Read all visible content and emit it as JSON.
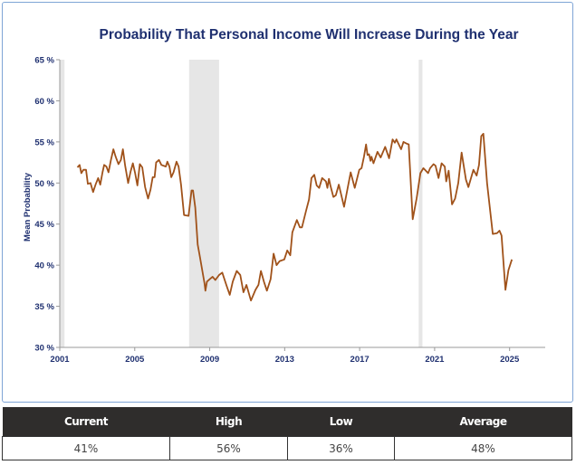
{
  "chart_data": {
    "type": "line",
    "title": "Probability That Personal Income Will Increase During the Year",
    "xlabel": "",
    "ylabel": "Mean Probability",
    "xlim": [
      2001,
      2026.9
    ],
    "ylim": [
      30,
      65
    ],
    "x_ticks": [
      "2001",
      "2005",
      "2009",
      "2013",
      "2017",
      "2021",
      "2025"
    ],
    "y_ticks": [
      "30 %",
      "35 %",
      "40 %",
      "45 %",
      "50 %",
      "55 %",
      "60 %",
      "65 %"
    ],
    "grid": false,
    "line_color": "#a0521a",
    "shaded_periods": [
      [
        2001.0,
        2001.25
      ],
      [
        2007.9,
        2009.5
      ],
      [
        2020.15,
        2020.35
      ]
    ],
    "shade_color": "#e6e6e6",
    "series": [
      {
        "points": [
          [
            2001.94,
            51.9
          ],
          [
            2002.06,
            52.2
          ],
          [
            2002.15,
            51.2
          ],
          [
            2002.26,
            51.6
          ],
          [
            2002.4,
            51.6
          ],
          [
            2002.5,
            49.9
          ],
          [
            2002.64,
            50.0
          ],
          [
            2002.78,
            48.9
          ],
          [
            2002.91,
            49.8
          ],
          [
            2003.05,
            50.6
          ],
          [
            2003.16,
            49.8
          ],
          [
            2003.28,
            51.3
          ],
          [
            2003.37,
            52.2
          ],
          [
            2003.49,
            52.0
          ],
          [
            2003.6,
            51.3
          ],
          [
            2003.73,
            52.8
          ],
          [
            2003.86,
            54.1
          ],
          [
            2003.98,
            53.2
          ],
          [
            2004.13,
            52.3
          ],
          [
            2004.26,
            52.8
          ],
          [
            2004.37,
            54.1
          ],
          [
            2004.49,
            52.1
          ],
          [
            2004.65,
            50.0
          ],
          [
            2004.78,
            51.4
          ],
          [
            2004.9,
            52.4
          ],
          [
            2005.02,
            51.2
          ],
          [
            2005.14,
            49.7
          ],
          [
            2005.27,
            52.3
          ],
          [
            2005.4,
            51.9
          ],
          [
            2005.55,
            49.5
          ],
          [
            2005.71,
            48.1
          ],
          [
            2005.84,
            49.2
          ],
          [
            2005.96,
            50.7
          ],
          [
            2006.06,
            50.7
          ],
          [
            2006.14,
            52.5
          ],
          [
            2006.29,
            52.8
          ],
          [
            2006.42,
            52.2
          ],
          [
            2006.66,
            52.0
          ],
          [
            2006.74,
            52.6
          ],
          [
            2006.85,
            52.0
          ],
          [
            2006.95,
            50.7
          ],
          [
            2007.07,
            51.3
          ],
          [
            2007.23,
            52.6
          ],
          [
            2007.34,
            52.0
          ],
          [
            2007.47,
            49.8
          ],
          [
            2007.63,
            46.1
          ],
          [
            2007.87,
            46.0
          ],
          [
            2008.03,
            49.1
          ],
          [
            2008.11,
            49.1
          ],
          [
            2008.23,
            47.0
          ],
          [
            2008.36,
            42.5
          ],
          [
            2008.47,
            41.1
          ],
          [
            2008.72,
            37.8
          ],
          [
            2008.77,
            36.9
          ],
          [
            2008.85,
            38.0
          ],
          [
            2009.0,
            38.3
          ],
          [
            2009.15,
            38.6
          ],
          [
            2009.3,
            38.2
          ],
          [
            2009.5,
            38.8
          ],
          [
            2009.67,
            39.1
          ],
          [
            2009.9,
            37.5
          ],
          [
            2010.07,
            36.4
          ],
          [
            2010.23,
            38.0
          ],
          [
            2010.44,
            39.3
          ],
          [
            2010.63,
            38.8
          ],
          [
            2010.8,
            36.7
          ],
          [
            2010.96,
            37.6
          ],
          [
            2011.2,
            35.7
          ],
          [
            2011.44,
            37.0
          ],
          [
            2011.6,
            37.6
          ],
          [
            2011.73,
            39.3
          ],
          [
            2011.89,
            38.0
          ],
          [
            2012.05,
            36.9
          ],
          [
            2012.25,
            38.3
          ],
          [
            2012.41,
            41.4
          ],
          [
            2012.57,
            40.0
          ],
          [
            2012.73,
            40.5
          ],
          [
            2012.98,
            40.7
          ],
          [
            2013.14,
            41.8
          ],
          [
            2013.3,
            41.2
          ],
          [
            2013.41,
            44.0
          ],
          [
            2013.65,
            45.5
          ],
          [
            2013.81,
            44.6
          ],
          [
            2013.92,
            44.6
          ],
          [
            2014.14,
            46.6
          ],
          [
            2014.3,
            48.0
          ],
          [
            2014.43,
            50.6
          ],
          [
            2014.58,
            51.0
          ],
          [
            2014.71,
            49.7
          ],
          [
            2014.84,
            49.4
          ],
          [
            2015.0,
            50.6
          ],
          [
            2015.2,
            50.2
          ],
          [
            2015.28,
            49.4
          ],
          [
            2015.36,
            50.5
          ],
          [
            2015.44,
            49.7
          ],
          [
            2015.6,
            48.3
          ],
          [
            2015.73,
            48.5
          ],
          [
            2015.89,
            49.8
          ],
          [
            2016.17,
            47.1
          ],
          [
            2016.52,
            51.3
          ],
          [
            2016.74,
            49.4
          ],
          [
            2016.98,
            51.6
          ],
          [
            2017.1,
            51.8
          ],
          [
            2017.23,
            53.2
          ],
          [
            2017.34,
            54.7
          ],
          [
            2017.42,
            53.4
          ],
          [
            2017.5,
            53.5
          ],
          [
            2017.58,
            52.7
          ],
          [
            2017.63,
            53.2
          ],
          [
            2017.74,
            52.4
          ],
          [
            2017.95,
            53.8
          ],
          [
            2018.12,
            53.1
          ],
          [
            2018.36,
            54.4
          ],
          [
            2018.57,
            53.0
          ],
          [
            2018.76,
            55.3
          ],
          [
            2018.88,
            54.9
          ],
          [
            2018.96,
            55.3
          ],
          [
            2019.21,
            54.1
          ],
          [
            2019.34,
            55.0
          ],
          [
            2019.5,
            54.8
          ],
          [
            2019.62,
            54.7
          ],
          [
            2019.83,
            45.6
          ],
          [
            2020.04,
            48.1
          ],
          [
            2020.24,
            51.2
          ],
          [
            2020.4,
            51.8
          ],
          [
            2020.65,
            51.2
          ],
          [
            2020.76,
            51.8
          ],
          [
            2020.94,
            52.3
          ],
          [
            2021.05,
            52.1
          ],
          [
            2021.21,
            50.6
          ],
          [
            2021.37,
            52.4
          ],
          [
            2021.54,
            52.0
          ],
          [
            2021.62,
            50.2
          ],
          [
            2021.75,
            51.5
          ],
          [
            2021.93,
            47.4
          ],
          [
            2022.09,
            48.1
          ],
          [
            2022.26,
            50.0
          ],
          [
            2022.44,
            53.7
          ],
          [
            2022.67,
            50.4
          ],
          [
            2022.8,
            49.5
          ],
          [
            2023.07,
            51.6
          ],
          [
            2023.24,
            50.9
          ],
          [
            2023.37,
            52.2
          ],
          [
            2023.49,
            55.7
          ],
          [
            2023.6,
            56.0
          ],
          [
            2023.8,
            50.0
          ],
          [
            2024.1,
            43.8
          ],
          [
            2024.33,
            43.9
          ],
          [
            2024.46,
            44.2
          ],
          [
            2024.57,
            43.6
          ],
          [
            2024.78,
            37.0
          ],
          [
            2024.94,
            39.4
          ],
          [
            2025.12,
            40.7
          ]
        ]
      }
    ]
  },
  "stats_table": {
    "headers": [
      "Current",
      "High",
      "Low",
      "Average"
    ],
    "values": [
      "41%",
      "56%",
      "36%",
      "48%"
    ]
  }
}
